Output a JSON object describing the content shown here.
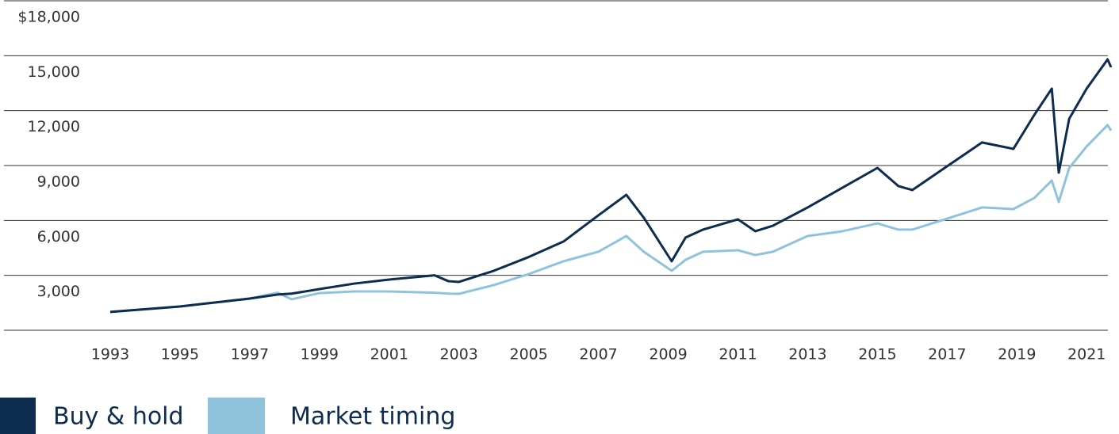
{
  "chart_data": {
    "type": "line",
    "x": [
      1993,
      1995,
      1997,
      1997.8,
      1998.2,
      1999,
      2000,
      2001,
      2002.3,
      2002.7,
      2003,
      2004,
      2005,
      2006,
      2007,
      2007.8,
      2008.3,
      2009.1,
      2009.5,
      2010,
      2011,
      2011.5,
      2012,
      2013,
      2014,
      2015,
      2015.6,
      2016,
      2017,
      2018,
      2018.9,
      2019.5,
      2020,
      2020.2,
      2020.5,
      2021,
      2021.6,
      2021.7
    ],
    "series": [
      {
        "name": "Buy & hold",
        "color": "#0d2c4f",
        "values": [
          1000,
          1300,
          1730,
          1950,
          2000,
          2250,
          2550,
          2770,
          3000,
          2680,
          2640,
          3250,
          4000,
          4850,
          6280,
          7400,
          6150,
          3770,
          5070,
          5500,
          6060,
          5410,
          5710,
          6710,
          7790,
          8870,
          7880,
          7660,
          8960,
          10260,
          9910,
          11770,
          13200,
          8610,
          11560,
          13200,
          14800,
          14370
        ]
      },
      {
        "name": "Market timing",
        "color": "#8fc3dc",
        "values": [
          1000,
          1300,
          1730,
          2050,
          1690,
          2030,
          2120,
          2120,
          2050,
          2000,
          1990,
          2470,
          3070,
          3770,
          4290,
          5150,
          4290,
          3250,
          3850,
          4290,
          4370,
          4110,
          4290,
          5150,
          5410,
          5840,
          5500,
          5500,
          6100,
          6710,
          6620,
          7230,
          8180,
          7010,
          8870,
          10040,
          11210,
          10910
        ]
      }
    ],
    "xlim": [
      1993,
      2021.7
    ],
    "xticks": [
      1993,
      1995,
      1997,
      1999,
      2001,
      2003,
      2005,
      2007,
      2009,
      2011,
      2013,
      2015,
      2017,
      2019,
      2021
    ],
    "ylim": [
      0,
      18000
    ],
    "yticks": [
      {
        "value": 3000,
        "label": "3,000"
      },
      {
        "value": 6000,
        "label": "6,000"
      },
      {
        "value": 9000,
        "label": "9,000"
      },
      {
        "value": 12000,
        "label": "12,000"
      },
      {
        "value": 15000,
        "label": "15,000"
      },
      {
        "value": 18000,
        "label": "$18,000"
      }
    ],
    "grid": true
  }
}
